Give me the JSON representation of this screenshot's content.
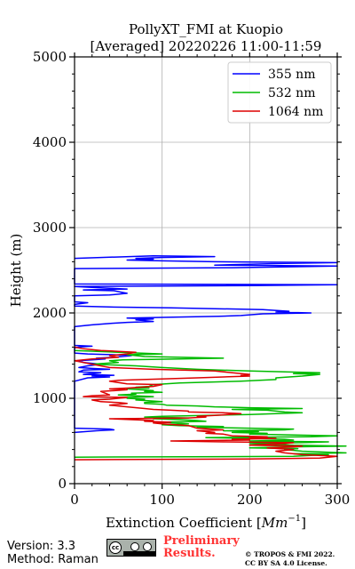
{
  "chart_data": {
    "type": "line",
    "title": "PollyXT_FMI at Kuopio",
    "subtitle": "[Averaged] 20220226 11:00-11:59",
    "xlabel": "Extinction Coefficient [",
    "xlabel_unit": "Mm",
    "xlabel_exp": "−1",
    "xlabel_close": "]",
    "ylabel": "Height (m)",
    "xlim": [
      0,
      300
    ],
    "ylim": [
      0,
      5000
    ],
    "x_ticks": [
      "0",
      "100",
      "200",
      "300"
    ],
    "y_ticks": [
      "0",
      "1000",
      "2000",
      "3000",
      "4000",
      "5000"
    ],
    "grid": true,
    "legend_position": "top-right",
    "series": [
      {
        "name": "355 nm",
        "color": "#0000ff",
        "points": [
          [
            0,
            600
          ],
          [
            25,
            620
          ],
          [
            45,
            630
          ],
          [
            40,
            640
          ],
          [
            0,
            650
          ],
          [
            0,
            1200
          ],
          [
            15,
            1240
          ],
          [
            40,
            1250
          ],
          [
            20,
            1260
          ],
          [
            45,
            1270
          ],
          [
            10,
            1280
          ],
          [
            30,
            1300
          ],
          [
            5,
            1310
          ],
          [
            10,
            1330
          ],
          [
            40,
            1340
          ],
          [
            20,
            1350
          ],
          [
            5,
            1360
          ],
          [
            15,
            1380
          ],
          [
            30,
            1400
          ],
          [
            10,
            1420
          ],
          [
            5,
            1440
          ],
          [
            35,
            1460
          ],
          [
            25,
            1470
          ],
          [
            45,
            1480
          ],
          [
            65,
            1500
          ],
          [
            45,
            1510
          ],
          [
            15,
            1520
          ],
          [
            0,
            1530
          ],
          [
            0,
            1590
          ],
          [
            5,
            1600
          ],
          [
            20,
            1610
          ],
          [
            0,
            1620
          ],
          [
            0,
            1840
          ],
          [
            20,
            1860
          ],
          [
            45,
            1880
          ],
          [
            60,
            1890
          ],
          [
            90,
            1900
          ],
          [
            70,
            1920
          ],
          [
            90,
            1930
          ],
          [
            60,
            1940
          ],
          [
            165,
            1960
          ],
          [
            190,
            1970
          ],
          [
            215,
            1990
          ],
          [
            270,
            2000
          ],
          [
            230,
            2010
          ],
          [
            245,
            2020
          ],
          [
            215,
            2040
          ],
          [
            160,
            2050
          ],
          [
            110,
            2060
          ],
          [
            40,
            2070
          ],
          [
            0,
            2080
          ],
          [
            0,
            2100
          ],
          [
            15,
            2120
          ],
          [
            0,
            2130
          ],
          [
            0,
            2200
          ],
          [
            40,
            2210
          ],
          [
            60,
            2230
          ],
          [
            55,
            2240
          ],
          [
            45,
            2260
          ],
          [
            10,
            2270
          ],
          [
            60,
            2280
          ],
          [
            40,
            2290
          ],
          [
            20,
            2300
          ],
          [
            0,
            2310
          ],
          [
            200,
            2320
          ],
          [
            300,
            2330
          ],
          [
            0,
            2340
          ],
          [
            0,
            2520
          ],
          [
            180,
            2530
          ],
          [
            300,
            2550
          ],
          [
            160,
            2560
          ],
          [
            200,
            2570
          ],
          [
            240,
            2580
          ],
          [
            300,
            2590
          ],
          [
            160,
            2600
          ],
          [
            100,
            2610
          ],
          [
            60,
            2620
          ],
          [
            90,
            2630
          ],
          [
            70,
            2640
          ],
          [
            100,
            2650
          ],
          [
            160,
            2660
          ],
          [
            90,
            2670
          ],
          [
            0,
            2640
          ]
        ]
      },
      {
        "name": "532 nm",
        "color": "#00bb00",
        "points": [
          [
            0,
            310
          ],
          [
            250,
            320
          ],
          [
            270,
            330
          ],
          [
            290,
            340
          ],
          [
            250,
            350
          ],
          [
            310,
            360
          ],
          [
            260,
            380
          ],
          [
            240,
            400
          ],
          [
            255,
            410
          ],
          [
            200,
            420
          ],
          [
            240,
            430
          ],
          [
            310,
            440
          ],
          [
            250,
            450
          ],
          [
            230,
            460
          ],
          [
            200,
            470
          ],
          [
            260,
            480
          ],
          [
            290,
            490
          ],
          [
            200,
            500
          ],
          [
            250,
            510
          ],
          [
            240,
            520
          ],
          [
            200,
            530
          ],
          [
            150,
            540
          ],
          [
            270,
            550
          ],
          [
            300,
            560
          ],
          [
            250,
            570
          ],
          [
            200,
            580
          ],
          [
            220,
            590
          ],
          [
            180,
            600
          ],
          [
            210,
            610
          ],
          [
            170,
            620
          ],
          [
            240,
            630
          ],
          [
            250,
            640
          ],
          [
            200,
            650
          ],
          [
            140,
            660
          ],
          [
            170,
            670
          ],
          [
            120,
            680
          ],
          [
            100,
            690
          ],
          [
            130,
            700
          ],
          [
            100,
            720
          ],
          [
            150,
            730
          ],
          [
            140,
            740
          ],
          [
            120,
            750
          ],
          [
            90,
            760
          ],
          [
            130,
            770
          ],
          [
            80,
            780
          ],
          [
            100,
            790
          ],
          [
            150,
            800
          ],
          [
            200,
            810
          ],
          [
            260,
            830
          ],
          [
            240,
            840
          ],
          [
            220,
            860
          ],
          [
            180,
            870
          ],
          [
            260,
            880
          ],
          [
            200,
            890
          ],
          [
            160,
            900
          ],
          [
            140,
            910
          ],
          [
            105,
            920
          ],
          [
            100,
            930
          ],
          [
            80,
            940
          ],
          [
            80,
            950
          ],
          [
            100,
            960
          ],
          [
            70,
            980
          ],
          [
            80,
            990
          ],
          [
            60,
            1000
          ],
          [
            60,
            1010
          ],
          [
            90,
            1020
          ],
          [
            50,
            1040
          ],
          [
            70,
            1050
          ],
          [
            65,
            1060
          ],
          [
            100,
            1070
          ],
          [
            80,
            1080
          ],
          [
            90,
            1090
          ],
          [
            60,
            1110
          ],
          [
            85,
            1120
          ],
          [
            70,
            1130
          ],
          [
            85,
            1140
          ],
          [
            90,
            1160
          ],
          [
            120,
            1180
          ],
          [
            190,
            1200
          ],
          [
            230,
            1220
          ],
          [
            230,
            1240
          ],
          [
            260,
            1260
          ],
          [
            280,
            1280
          ],
          [
            250,
            1290
          ],
          [
            280,
            1300
          ],
          [
            200,
            1320
          ],
          [
            140,
            1340
          ],
          [
            100,
            1360
          ],
          [
            70,
            1380
          ],
          [
            20,
            1400
          ],
          [
            50,
            1420
          ],
          [
            40,
            1440
          ],
          [
            55,
            1450
          ],
          [
            120,
            1460
          ],
          [
            170,
            1470
          ],
          [
            80,
            1490
          ],
          [
            60,
            1510
          ],
          [
            100,
            1520
          ],
          [
            50,
            1540
          ],
          [
            0,
            1560
          ]
        ]
      },
      {
        "name": "1064 nm",
        "color": "#dd0000",
        "points": [
          [
            0,
            280
          ],
          [
            200,
            290
          ],
          [
            280,
            300
          ],
          [
            300,
            320
          ],
          [
            260,
            340
          ],
          [
            240,
            360
          ],
          [
            230,
            380
          ],
          [
            250,
            400
          ],
          [
            220,
            420
          ],
          [
            250,
            430
          ],
          [
            260,
            440
          ],
          [
            200,
            450
          ],
          [
            220,
            460
          ],
          [
            240,
            470
          ],
          [
            250,
            480
          ],
          [
            170,
            490
          ],
          [
            110,
            500
          ],
          [
            200,
            510
          ],
          [
            180,
            520
          ],
          [
            230,
            530
          ],
          [
            200,
            540
          ],
          [
            220,
            550
          ],
          [
            180,
            560
          ],
          [
            170,
            580
          ],
          [
            150,
            590
          ],
          [
            160,
            600
          ],
          [
            150,
            610
          ],
          [
            140,
            620
          ],
          [
            170,
            630
          ],
          [
            140,
            650
          ],
          [
            130,
            680
          ],
          [
            100,
            700
          ],
          [
            90,
            710
          ],
          [
            110,
            720
          ],
          [
            80,
            730
          ],
          [
            90,
            740
          ],
          [
            40,
            760
          ],
          [
            130,
            770
          ],
          [
            150,
            780
          ],
          [
            140,
            790
          ],
          [
            160,
            800
          ],
          [
            175,
            810
          ],
          [
            190,
            820
          ],
          [
            170,
            830
          ],
          [
            130,
            840
          ],
          [
            130,
            850
          ],
          [
            110,
            860
          ],
          [
            90,
            870
          ],
          [
            80,
            880
          ],
          [
            60,
            900
          ],
          [
            40,
            920
          ],
          [
            60,
            940
          ],
          [
            50,
            950
          ],
          [
            30,
            960
          ],
          [
            20,
            980
          ],
          [
            40,
            990
          ],
          [
            60,
            1010
          ],
          [
            10,
            1020
          ],
          [
            20,
            1030
          ],
          [
            40,
            1040
          ],
          [
            35,
            1060
          ],
          [
            30,
            1080
          ],
          [
            60,
            1100
          ],
          [
            40,
            1110
          ],
          [
            60,
            1120
          ],
          [
            90,
            1140
          ],
          [
            100,
            1160
          ],
          [
            60,
            1170
          ],
          [
            40,
            1200
          ],
          [
            50,
            1210
          ],
          [
            140,
            1240
          ],
          [
            170,
            1250
          ],
          [
            200,
            1260
          ],
          [
            190,
            1270
          ],
          [
            200,
            1280
          ],
          [
            180,
            1300
          ],
          [
            160,
            1320
          ],
          [
            90,
            1340
          ],
          [
            40,
            1360
          ],
          [
            30,
            1380
          ],
          [
            20,
            1400
          ],
          [
            10,
            1420
          ],
          [
            0,
            1440
          ],
          [
            20,
            1460
          ],
          [
            50,
            1480
          ],
          [
            40,
            1500
          ],
          [
            60,
            1520
          ],
          [
            70,
            1540
          ],
          [
            50,
            1550
          ],
          [
            30,
            1560
          ],
          [
            10,
            1580
          ],
          [
            0,
            1600
          ]
        ]
      }
    ]
  },
  "footer": {
    "version": "Version: 3.3",
    "method": "Method: Raman",
    "cc_badge_text": "cc",
    "preliminary_line1": "Preliminary",
    "preliminary_line2": "Results.",
    "copyright_line1": "© TROPOS & FMI 2022.",
    "copyright_line2": "CC BY SA 4.0 License."
  }
}
